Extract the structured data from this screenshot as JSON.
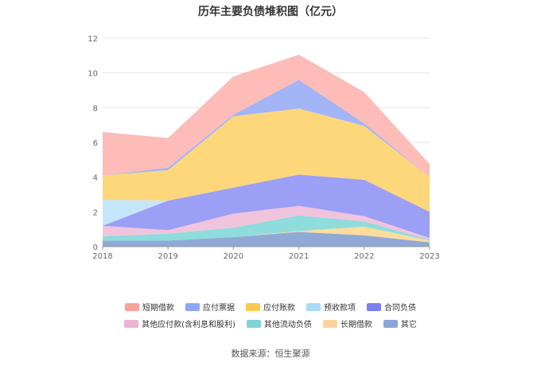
{
  "chart_data": {
    "type": "area",
    "title": "历年主要负债堆积图（亿元）",
    "x": [
      "2018",
      "2019",
      "2020",
      "2021",
      "2022",
      "2023"
    ],
    "ylim": [
      0,
      12
    ],
    "yticks": [
      "0",
      "2",
      "4",
      "6",
      "8",
      "10",
      "12"
    ],
    "stacked": true,
    "grid": true,
    "legend_position": "bottom",
    "series": [
      {
        "name": "其它",
        "color": "#8fa9d6",
        "values": [
          0.35,
          0.35,
          0.55,
          0.85,
          0.65,
          0.25
        ]
      },
      {
        "name": "长期借款",
        "color": "#fddc9c",
        "values": [
          0.0,
          0.0,
          0.0,
          0.05,
          0.5,
          0.1
        ]
      },
      {
        "name": "其他流动负债",
        "color": "#8fdcdc",
        "values": [
          0.25,
          0.4,
          0.55,
          0.9,
          0.3,
          0.05
        ]
      },
      {
        "name": "其他应付款(含利息和股利)",
        "color": "#f0c4dc",
        "values": [
          0.6,
          0.2,
          0.8,
          0.55,
          0.3,
          0.1
        ]
      },
      {
        "name": "合同负债",
        "color": "#9b9ff5",
        "values": [
          0.0,
          1.7,
          1.5,
          1.8,
          2.1,
          1.5
        ]
      },
      {
        "name": "预收款项",
        "color": "#c4e6fa",
        "values": [
          1.5,
          0.0,
          0.0,
          0.0,
          0.0,
          0.0
        ]
      },
      {
        "name": "应付账款",
        "color": "#fed77b",
        "values": [
          1.4,
          1.75,
          4.1,
          3.8,
          3.1,
          2.0
        ]
      },
      {
        "name": "应付票据",
        "color": "#a3b4f7",
        "values": [
          0.0,
          0.15,
          0.1,
          1.65,
          0.15,
          0.0
        ]
      },
      {
        "name": "短期借款",
        "color": "#fdbcb7",
        "values": [
          2.5,
          1.7,
          2.2,
          1.45,
          1.8,
          0.75
        ]
      }
    ]
  },
  "legend": {
    "row1": [
      {
        "label": "短期借款",
        "color": "#f9a39a"
      },
      {
        "label": "应付票据",
        "color": "#8fa6f5"
      },
      {
        "label": "应付账款",
        "color": "#fbc94e"
      },
      {
        "label": "预收款项",
        "color": "#a8dcf7"
      },
      {
        "label": "合同负债",
        "color": "#7b7ff0"
      }
    ],
    "row2": [
      {
        "label": "其他应付款(含利息和股利)",
        "color": "#ebb4d6"
      },
      {
        "label": "其他流动负债",
        "color": "#7fd4d6"
      },
      {
        "label": "长期借款",
        "color": "#fdd49a"
      },
      {
        "label": "其它",
        "color": "#8aa6d8"
      }
    ]
  },
  "source": "数据来源：恒生聚源"
}
